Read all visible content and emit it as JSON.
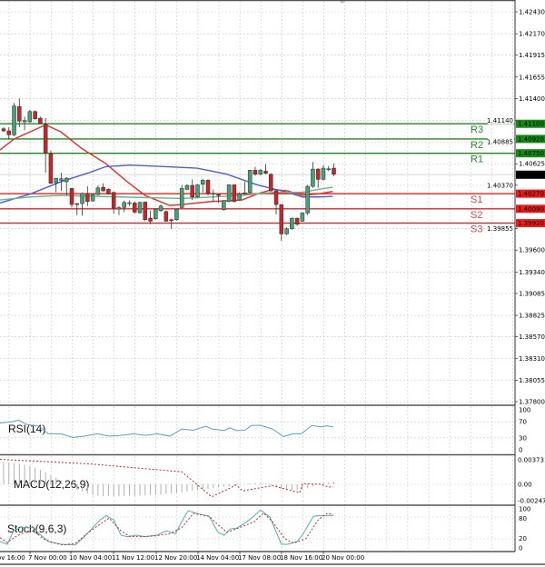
{
  "chart_data": {
    "type": "candlestick",
    "colors": {
      "up": "#4a9e78",
      "down": "#c0282a",
      "ma_red": "#e0302a",
      "ma_blue": "#4a62cf",
      "ma_green": "#6ab68a",
      "resistance": "#1f8a1f",
      "support": "#e02424",
      "current": "#000000",
      "rsi": "#5aa0c8",
      "stoch_main": "#4fb0b0",
      "stoch_signal": "#c0282a",
      "macd_hist": "#b0b0b0",
      "macd_signal": "#c0282a",
      "grid": "#c8c8c8"
    },
    "price_axis": {
      "min": 1.378,
      "max": 1.4243,
      "ticks": [
        "1.42430",
        "1.42170",
        "1.41915",
        "1.41655",
        "1.41400",
        "1.41140",
        "1.40885",
        "1.40625",
        "1.40370",
        "1.39855",
        "1.39600",
        "1.39340",
        "1.39085",
        "1.38825",
        "1.38570",
        "1.38310",
        "1.38055",
        "1.37800"
      ]
    },
    "time_labels": [
      "6 Nov 16:00",
      "7 Nov 00:00",
      "10 Nov 04:00",
      "11 Nov 12:00",
      "12 Nov 20:00",
      "14 Nov 04:00",
      "17 Nov 08:00",
      "18 Nov 16:00",
      "20 Nov 00:00"
    ],
    "current_price": {
      "value": 1.40495,
      "label": "1.40495"
    },
    "levels": [
      {
        "name": "R3",
        "value": 1.411,
        "label": "1.41100",
        "type": "resistance"
      },
      {
        "name": "R2",
        "value": 1.4092,
        "label": "1.40920",
        "type": "resistance"
      },
      {
        "name": "R1",
        "value": 1.4075,
        "label": "1.40750",
        "type": "resistance"
      },
      {
        "name": "S1",
        "value": 1.4027,
        "label": "1.40270",
        "type": "support"
      },
      {
        "name": "S2",
        "value": 1.4009,
        "label": "1.40090",
        "type": "support"
      },
      {
        "name": "S3",
        "value": 1.3992,
        "label": "1.39920",
        "type": "support"
      }
    ],
    "candles_ohlc": [
      [
        1.41041,
        1.41059,
        1.41,
        1.41016
      ],
      [
        1.41016,
        1.41059,
        1.40915,
        1.40969
      ],
      [
        1.40969,
        1.41347,
        1.40951,
        1.41311
      ],
      [
        1.41304,
        1.41401,
        1.41059,
        1.41131
      ],
      [
        1.41124,
        1.41185,
        1.41023,
        1.41138
      ],
      [
        1.41124,
        1.41268,
        1.41113,
        1.41246
      ],
      [
        1.41246,
        1.41257,
        1.41149,
        1.4116
      ],
      [
        1.41167,
        1.41185,
        1.41095,
        1.41102
      ],
      [
        1.41095,
        1.41167,
        1.40519,
        1.40753
      ],
      [
        1.40742,
        1.40782,
        1.40393,
        1.40393
      ],
      [
        1.404,
        1.40455,
        1.40285,
        1.40454
      ],
      [
        1.40429,
        1.40519,
        1.40303,
        1.40447
      ],
      [
        1.40411,
        1.40465,
        1.40249,
        1.40454
      ],
      [
        1.40332,
        1.40339,
        1.40105,
        1.40141
      ],
      [
        1.40152,
        1.40159,
        1.40015,
        1.40148
      ],
      [
        1.40152,
        1.40285,
        1.40008,
        1.40274
      ],
      [
        1.40274,
        1.40357,
        1.40123,
        1.40177
      ],
      [
        1.40184,
        1.40267,
        1.40177,
        1.4026
      ],
      [
        1.4026,
        1.40368,
        1.40249,
        1.40339
      ],
      [
        1.40346,
        1.40393,
        1.40296,
        1.40303
      ],
      [
        1.40321,
        1.40332,
        1.4026,
        1.40267
      ],
      [
        1.40285,
        1.40292,
        1.40033,
        1.40098
      ],
      [
        1.40087,
        1.40123,
        1.40015,
        1.40105
      ],
      [
        1.40105,
        1.40188,
        1.40051,
        1.40166
      ],
      [
        1.40159,
        1.40188,
        1.40123,
        1.40163
      ],
      [
        1.40159,
        1.40177,
        1.40033,
        1.40051
      ],
      [
        1.40044,
        1.40177,
        1.40033,
        1.40166
      ],
      [
        1.4017,
        1.40177,
        1.39943,
        1.39961
      ],
      [
        1.39979,
        1.40069,
        1.39907,
        1.39943
      ],
      [
        1.39972,
        1.40094,
        1.39961,
        1.40087
      ],
      [
        1.40069,
        1.40141,
        1.40051,
        1.40123
      ],
      [
        1.40058,
        1.40069,
        1.39936,
        1.39943
      ],
      [
        1.39961,
        1.39972,
        1.39853,
        1.3995
      ],
      [
        1.39961,
        1.40094,
        1.3995,
        1.40087
      ],
      [
        1.40105,
        1.40375,
        1.40094,
        1.40332
      ],
      [
        1.40321,
        1.40382,
        1.4031,
        1.40368
      ],
      [
        1.40368,
        1.4044,
        1.40195,
        1.40231
      ],
      [
        1.40231,
        1.40382,
        1.40224,
        1.40375
      ],
      [
        1.40382,
        1.40447,
        1.40285,
        1.40429
      ],
      [
        1.40429,
        1.4044,
        1.40249,
        1.40274
      ],
      [
        1.40267,
        1.40321,
        1.40177,
        1.40274
      ],
      [
        1.4026,
        1.40267,
        1.40159,
        1.40249
      ],
      [
        1.4008,
        1.40195,
        1.40069,
        1.40188
      ],
      [
        1.40177,
        1.40382,
        1.40166,
        1.40375
      ],
      [
        1.40375,
        1.40382,
        1.40166,
        1.40177
      ],
      [
        1.40195,
        1.40285,
        1.40188,
        1.40267
      ],
      [
        1.40267,
        1.40411,
        1.4026,
        1.40281
      ],
      [
        1.40285,
        1.40555,
        1.40274,
        1.40548
      ],
      [
        1.40548,
        1.40591,
        1.40483,
        1.40501
      ],
      [
        1.40501,
        1.40562,
        1.4049,
        1.40548
      ],
      [
        1.40537,
        1.4062,
        1.40501,
        1.40512
      ],
      [
        1.40501,
        1.40512,
        1.40296,
        1.40303
      ],
      [
        1.40303,
        1.40321,
        1.40022,
        1.40141
      ],
      [
        1.40141,
        1.40141,
        1.39709,
        1.39792
      ],
      [
        1.39792,
        1.39871,
        1.39781,
        1.39853
      ],
      [
        1.39853,
        1.39986,
        1.39842,
        1.39979
      ],
      [
        1.39979,
        1.39986,
        1.39889,
        1.39907
      ],
      [
        1.39943,
        1.40051,
        1.39936,
        1.4004
      ],
      [
        1.4004,
        1.40375,
        1.40015,
        1.40357
      ],
      [
        1.40357,
        1.40645,
        1.40339,
        1.40562
      ],
      [
        1.40562,
        1.40573,
        1.40339,
        1.4044
      ],
      [
        1.4044,
        1.40609,
        1.40429,
        1.40573
      ],
      [
        1.40562,
        1.40598,
        1.40537,
        1.40565
      ],
      [
        1.40573,
        1.40627,
        1.40476,
        1.40501
      ]
    ],
    "moving_averages": [
      {
        "color_key": "ma_red",
        "points": [
          [
            -0.7,
            1.40789
          ],
          [
            1.9,
            1.40915
          ],
          [
            8,
            1.41088
          ],
          [
            10.9,
            1.41005
          ],
          [
            14.9,
            1.40807
          ],
          [
            19.5,
            1.40627
          ],
          [
            23.6,
            1.40411
          ],
          [
            27,
            1.40249
          ],
          [
            31.7,
            1.4013
          ],
          [
            34,
            1.40141
          ],
          [
            39.7,
            1.40177
          ],
          [
            45.5,
            1.40195
          ],
          [
            48.4,
            1.40267
          ],
          [
            51.3,
            1.40321
          ],
          [
            54.2,
            1.40303
          ],
          [
            57,
            1.40249
          ],
          [
            60,
            1.40267
          ],
          [
            62.8,
            1.40296
          ]
        ]
      },
      {
        "color_key": "ma_blue",
        "points": [
          [
            -0.7,
            1.40159
          ],
          [
            5.1,
            1.40267
          ],
          [
            10.9,
            1.40411
          ],
          [
            16.6,
            1.40526
          ],
          [
            19.5,
            1.40591
          ],
          [
            24.1,
            1.40609
          ],
          [
            31.1,
            1.40591
          ],
          [
            36.9,
            1.40573
          ],
          [
            42.6,
            1.40501
          ],
          [
            48.4,
            1.40375
          ],
          [
            54.2,
            1.40285
          ],
          [
            57,
            1.40231
          ],
          [
            60,
            1.40231
          ],
          [
            62.8,
            1.40238
          ]
        ]
      },
      {
        "color_key": "ma_green",
        "points": [
          [
            -0.7,
            1.40195
          ],
          [
            5.1,
            1.40231
          ],
          [
            10.9,
            1.40249
          ],
          [
            22.4,
            1.40231
          ],
          [
            34,
            1.40213
          ],
          [
            45.5,
            1.40249
          ],
          [
            51.3,
            1.40285
          ],
          [
            57,
            1.40285
          ],
          [
            60,
            1.40321
          ],
          [
            62.8,
            1.40346
          ]
        ]
      }
    ],
    "rsi": {
      "label": "RSI(14)",
      "min": 0,
      "max": 100,
      "ticks": [
        "100",
        "70",
        "30",
        "0"
      ],
      "points": [
        [
          -0.7,
          67
        ],
        [
          1.6,
          70
        ],
        [
          2.8,
          74
        ],
        [
          4.5,
          63
        ],
        [
          6.8,
          59
        ],
        [
          8.5,
          40
        ],
        [
          10.9,
          40
        ],
        [
          13.2,
          31
        ],
        [
          15.4,
          34
        ],
        [
          17.9,
          40
        ],
        [
          20.1,
          34
        ],
        [
          22.4,
          36
        ],
        [
          24.8,
          40
        ],
        [
          27,
          36
        ],
        [
          29.3,
          40
        ],
        [
          31.7,
          34
        ],
        [
          34,
          52
        ],
        [
          36.2,
          49
        ],
        [
          38.6,
          59
        ],
        [
          39.7,
          52
        ],
        [
          42.1,
          48
        ],
        [
          43.2,
          55
        ],
        [
          44.4,
          48
        ],
        [
          46.1,
          49
        ],
        [
          47.3,
          61
        ],
        [
          49,
          61
        ],
        [
          51.3,
          52
        ],
        [
          53.4,
          33
        ],
        [
          55.3,
          40
        ],
        [
          56.8,
          40
        ],
        [
          58.8,
          61
        ],
        [
          60.5,
          57
        ],
        [
          61.7,
          60
        ],
        [
          62.9,
          57
        ]
      ]
    },
    "macd": {
      "label": "MACD(12,26,9)",
      "max": 0.003731,
      "min": -0.002473,
      "ticks": [
        "0.003731",
        "0.00",
        "-0.002473"
      ],
      "histogram": [
        0.0034,
        0.0033,
        0.0032,
        0.0031,
        0.003,
        0.0028,
        0.0025,
        0.0022,
        0.0018,
        0.0014,
        0.001,
        0.0006,
        0.0002,
        -0.0003,
        -0.0007,
        -0.0011,
        -0.0014,
        -0.0016,
        -0.0017,
        -0.0018,
        -0.0018,
        -0.0018,
        -0.0018,
        -0.0018,
        -0.0017,
        -0.0018,
        -0.0017,
        -0.0017,
        -0.0016,
        -0.0016,
        -0.0016,
        -0.0015,
        -0.0014,
        -0.0013,
        -0.0012,
        -0.0011,
        -0.001,
        -0.0009,
        -0.0008,
        -0.0007,
        -0.0006,
        -0.0005,
        -0.0004,
        -0.0003,
        -0.0002,
        -0.0001,
        0.0,
        0.0001,
        0.0002,
        0.0002,
        0.0001,
        -0.0001,
        -0.0004,
        -0.0007,
        -0.0009,
        -0.0009,
        -0.0009,
        -0.0008,
        -0.0006,
        -0.0003,
        0.0,
        0.0002,
        0.0003,
        0.0004
      ],
      "signal": [
        [
          -0.7,
          0.0038
        ],
        [
          16.6,
          0.0031
        ],
        [
          34,
          0.0019
        ],
        [
          44.4,
          -0.0001
        ],
        [
          56.5,
          -0.0013
        ],
        [
          68,
          -0.00175
        ]
      ]
    },
    "stoch": {
      "label": "Stoch(9,6,3)",
      "min": 0,
      "max": 100,
      "ticks": [
        "100",
        "80",
        "20",
        "0"
      ],
      "main": [
        [
          -0.7,
          13
        ],
        [
          0.7,
          5
        ],
        [
          1.9,
          42
        ],
        [
          3.3,
          52
        ],
        [
          5.7,
          51
        ],
        [
          6.8,
          34
        ],
        [
          8.5,
          13
        ],
        [
          10.9,
          5
        ],
        [
          13.7,
          3
        ],
        [
          15.4,
          26
        ],
        [
          18.4,
          72
        ],
        [
          19.6,
          84
        ],
        [
          21,
          72
        ],
        [
          22.4,
          30
        ],
        [
          23.6,
          26
        ],
        [
          25.3,
          30
        ],
        [
          27,
          26
        ],
        [
          29.3,
          30
        ],
        [
          31,
          42
        ],
        [
          32.8,
          34
        ],
        [
          34,
          68
        ],
        [
          35.2,
          97
        ],
        [
          37.4,
          88
        ],
        [
          39.2,
          82
        ],
        [
          40.9,
          38
        ],
        [
          42.1,
          30
        ],
        [
          43.2,
          47
        ],
        [
          44.4,
          49
        ],
        [
          45.6,
          59
        ],
        [
          47.3,
          77
        ],
        [
          49,
          99
        ],
        [
          50.8,
          80
        ],
        [
          53,
          5
        ],
        [
          54.2,
          5
        ],
        [
          56,
          13
        ],
        [
          57,
          30
        ],
        [
          59.1,
          82
        ],
        [
          60.5,
          84
        ],
        [
          62.9,
          84
        ]
      ],
      "signal": [
        [
          -0.7,
          23
        ],
        [
          0.7,
          10
        ],
        [
          2.3,
          26
        ],
        [
          4,
          38
        ],
        [
          5.7,
          42
        ],
        [
          7.5,
          21
        ],
        [
          9.2,
          10
        ],
        [
          11.4,
          3
        ],
        [
          13.7,
          8
        ],
        [
          16.6,
          42
        ],
        [
          20.1,
          77
        ],
        [
          22.4,
          42
        ],
        [
          24.1,
          26
        ],
        [
          26.5,
          26
        ],
        [
          28.8,
          28
        ],
        [
          31.7,
          34
        ],
        [
          34,
          51
        ],
        [
          36.2,
          90
        ],
        [
          39.2,
          82
        ],
        [
          40.9,
          59
        ],
        [
          42.6,
          38
        ],
        [
          45.6,
          54
        ],
        [
          47.8,
          67
        ],
        [
          49.6,
          91
        ],
        [
          51.3,
          67
        ],
        [
          53.6,
          21
        ],
        [
          55.3,
          8
        ],
        [
          57.7,
          21
        ],
        [
          60,
          72
        ],
        [
          61.7,
          90
        ],
        [
          62.9,
          87
        ]
      ]
    }
  }
}
